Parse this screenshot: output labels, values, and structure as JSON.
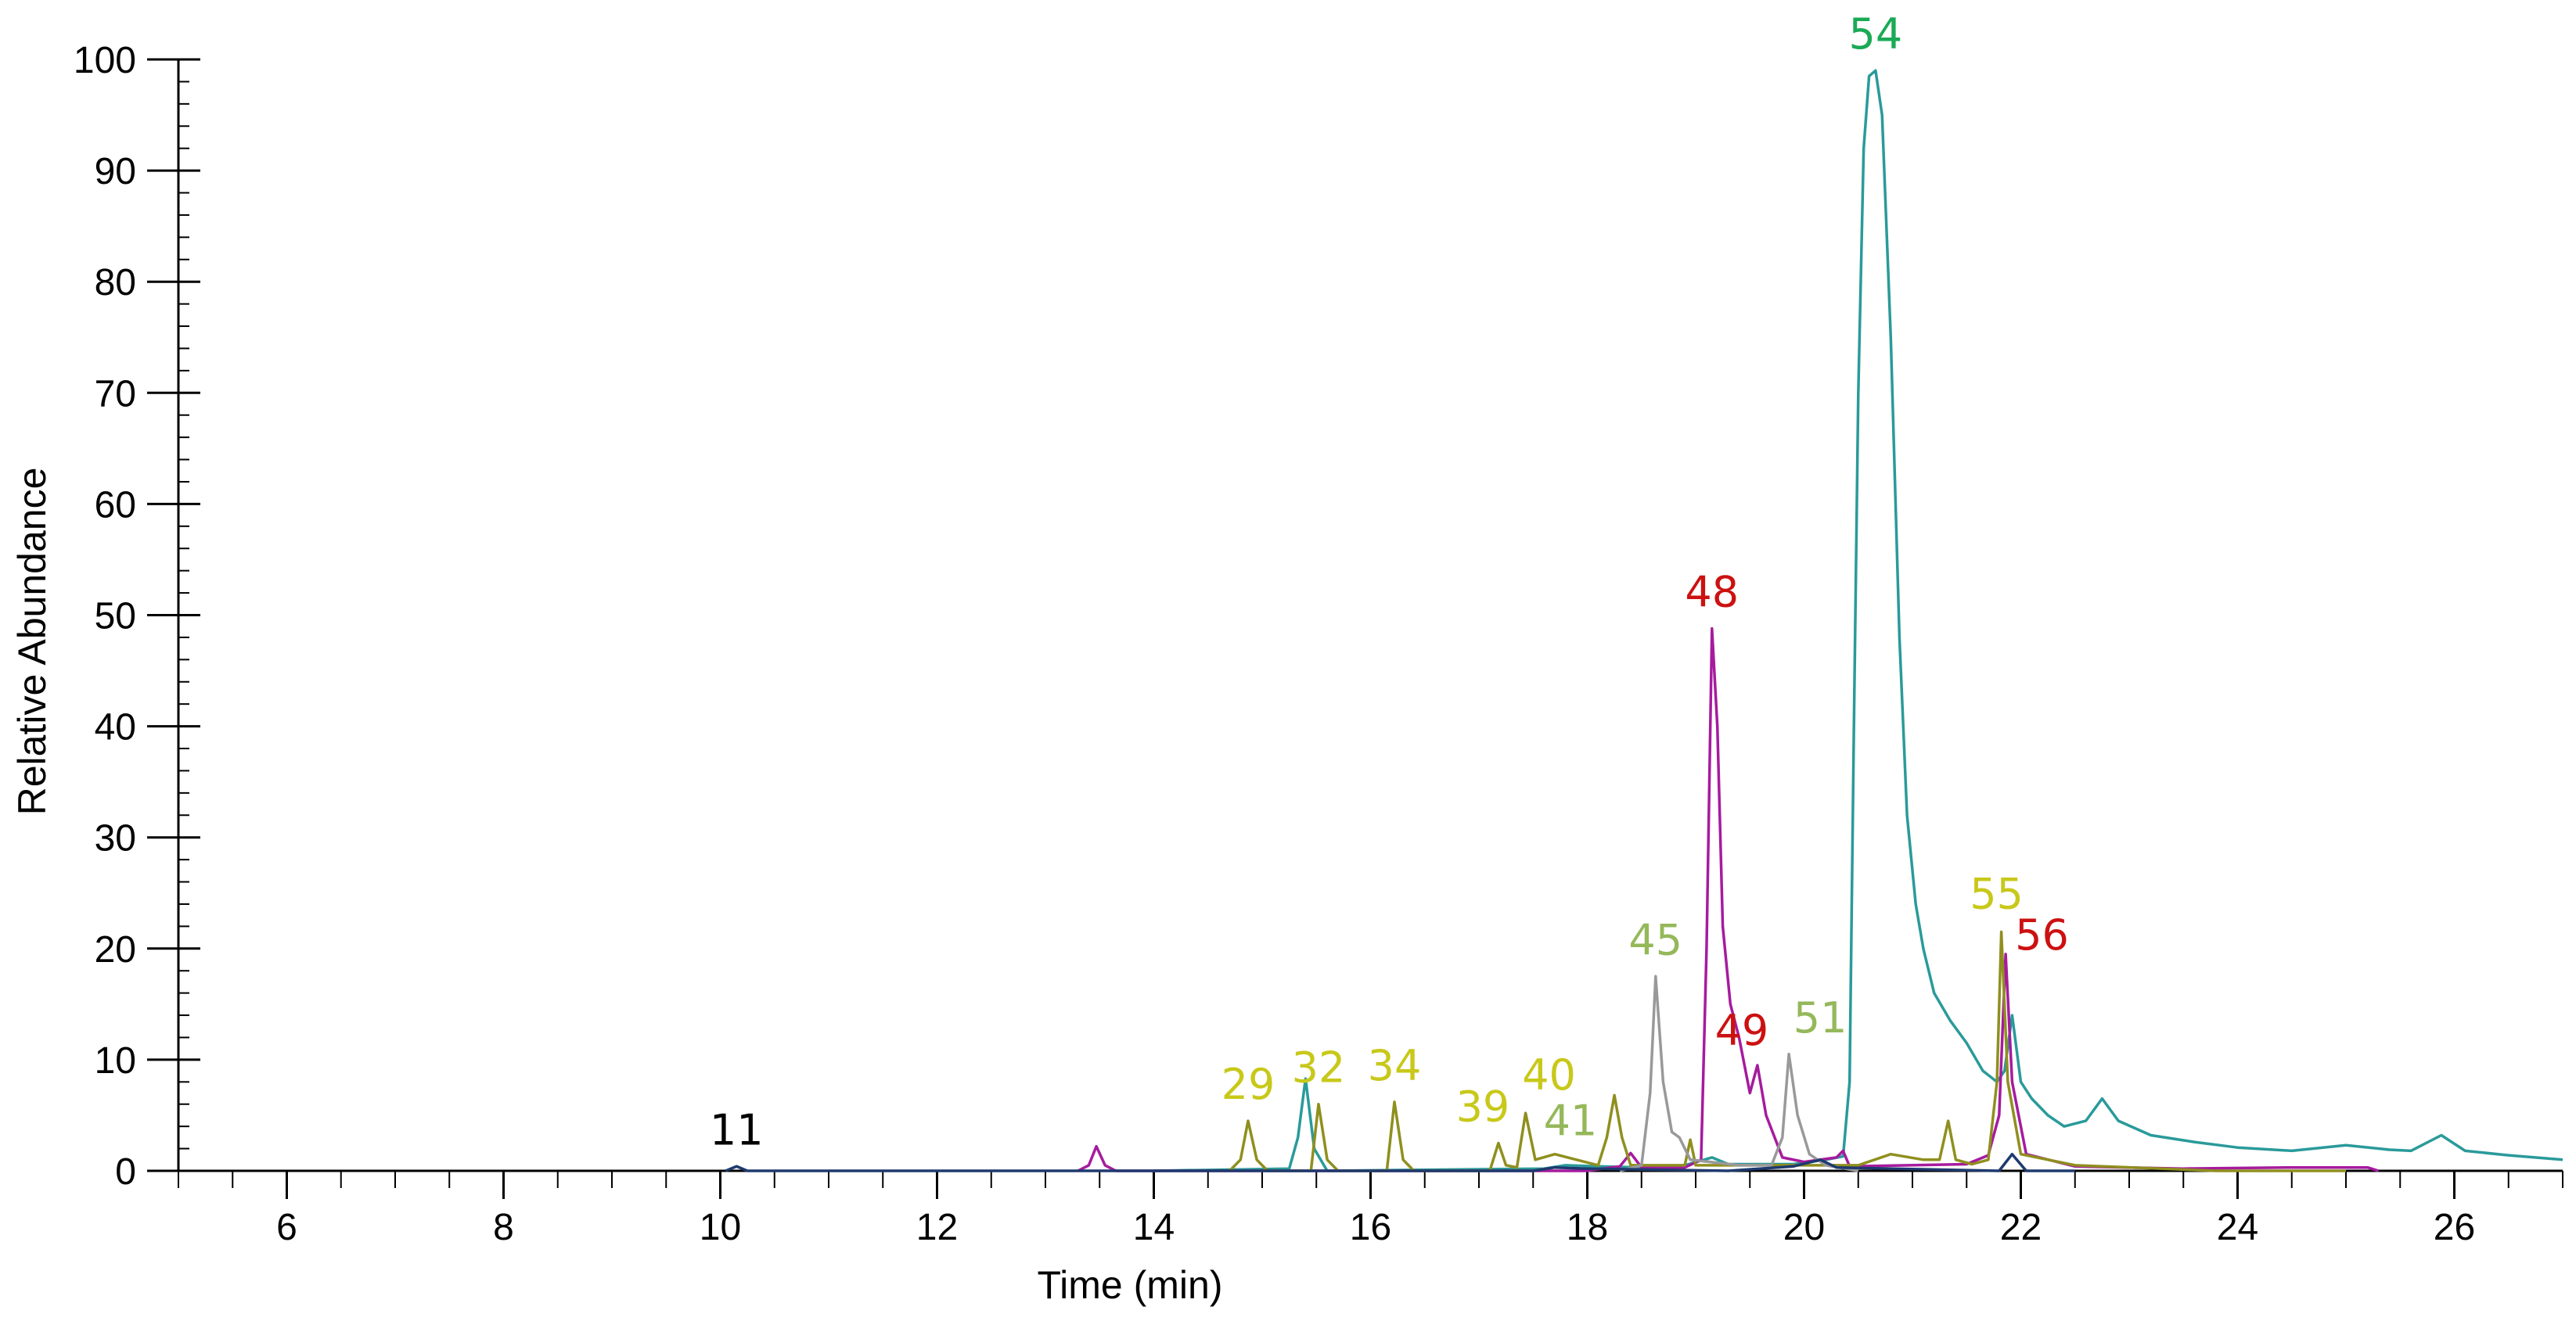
{
  "chart_data": {
    "type": "line",
    "title": "",
    "xlabel": "Time (min)",
    "ylabel": "Relative Abundance",
    "xlim": [
      5,
      27
    ],
    "ylim": [
      0,
      100
    ],
    "x_ticks": [
      6,
      8,
      10,
      12,
      14,
      16,
      18,
      20,
      22,
      24,
      26
    ],
    "x_tick_labels": [
      "6",
      "8",
      "10",
      "12",
      "14",
      "16",
      "18",
      "20",
      "22",
      "24",
      "26"
    ],
    "y_ticks": [
      0,
      10,
      20,
      30,
      40,
      50,
      60,
      70,
      80,
      90,
      100
    ],
    "y_tick_labels": [
      "0",
      "10",
      "20",
      "30",
      "40",
      "50",
      "60",
      "70",
      "80",
      "90",
      "100"
    ],
    "grid": false,
    "legend": "none",
    "series": [
      {
        "color": "#2a9a9a",
        "points": [
          [
            14.0,
            0
          ],
          [
            15.25,
            0.2
          ],
          [
            15.33,
            3
          ],
          [
            15.4,
            8.3
          ],
          [
            15.48,
            2
          ],
          [
            15.6,
            0
          ],
          [
            17.6,
            0.2
          ],
          [
            17.8,
            0.5
          ],
          [
            18.1,
            0.4
          ],
          [
            18.5,
            0.3
          ],
          [
            18.9,
            0.5
          ],
          [
            19.15,
            1.2
          ],
          [
            19.3,
            0.6
          ],
          [
            19.9,
            0.6
          ],
          [
            20.2,
            1.0
          ],
          [
            20.36,
            1.3
          ],
          [
            20.42,
            8
          ],
          [
            20.46,
            40
          ],
          [
            20.5,
            70
          ],
          [
            20.55,
            92
          ],
          [
            20.6,
            98.5
          ],
          [
            20.66,
            99
          ],
          [
            20.72,
            95
          ],
          [
            20.8,
            75
          ],
          [
            20.88,
            48
          ],
          [
            20.95,
            32
          ],
          [
            21.03,
            24
          ],
          [
            21.1,
            20
          ],
          [
            21.2,
            16
          ],
          [
            21.35,
            13.5
          ],
          [
            21.5,
            11.5
          ],
          [
            21.65,
            9
          ],
          [
            21.78,
            8
          ],
          [
            21.85,
            9
          ],
          [
            21.92,
            14
          ],
          [
            22.0,
            8
          ],
          [
            22.1,
            6.5
          ],
          [
            22.25,
            5
          ],
          [
            22.4,
            4
          ],
          [
            22.6,
            4.5
          ],
          [
            22.75,
            6.5
          ],
          [
            22.9,
            4.5
          ],
          [
            23.2,
            3.2
          ],
          [
            23.6,
            2.6
          ],
          [
            24.0,
            2.1
          ],
          [
            24.5,
            1.8
          ],
          [
            25.0,
            2.3
          ],
          [
            25.4,
            1.9
          ],
          [
            25.6,
            1.8
          ],
          [
            25.88,
            3.2
          ],
          [
            26.1,
            1.8
          ],
          [
            26.5,
            1.4
          ],
          [
            27.0,
            1.0
          ]
        ]
      },
      {
        "color": "#a61b9e",
        "points": [
          [
            13.3,
            0
          ],
          [
            13.4,
            0.5
          ],
          [
            13.47,
            2.2
          ],
          [
            13.55,
            0.5
          ],
          [
            13.65,
            0
          ],
          [
            18.0,
            0
          ],
          [
            18.3,
            0.4
          ],
          [
            18.4,
            1.6
          ],
          [
            18.5,
            0.3
          ],
          [
            18.9,
            0.3
          ],
          [
            19.05,
            1
          ],
          [
            19.1,
            20
          ],
          [
            19.15,
            48.8
          ],
          [
            19.2,
            40
          ],
          [
            19.25,
            22
          ],
          [
            19.32,
            15
          ],
          [
            19.4,
            12
          ],
          [
            19.5,
            7
          ],
          [
            19.57,
            9.5
          ],
          [
            19.65,
            5
          ],
          [
            19.8,
            1.2
          ],
          [
            20.0,
            0.8
          ],
          [
            20.3,
            1.2
          ],
          [
            20.36,
            1.8
          ],
          [
            20.42,
            0.4
          ],
          [
            21.5,
            0.6
          ],
          [
            21.7,
            1.4
          ],
          [
            21.8,
            5
          ],
          [
            21.86,
            19.5
          ],
          [
            21.92,
            8
          ],
          [
            22.05,
            1.5
          ],
          [
            22.5,
            0.4
          ],
          [
            23.5,
            0.2
          ],
          [
            24.5,
            0.3
          ],
          [
            25.2,
            0.3
          ],
          [
            25.3,
            0
          ]
        ]
      },
      {
        "color": "#8f8f1f",
        "points": [
          [
            14.7,
            0
          ],
          [
            14.8,
            1
          ],
          [
            14.87,
            4.5
          ],
          [
            14.95,
            1
          ],
          [
            15.05,
            0
          ],
          [
            15.45,
            0
          ],
          [
            15.52,
            6
          ],
          [
            15.6,
            1
          ],
          [
            15.7,
            0
          ],
          [
            16.15,
            0
          ],
          [
            16.22,
            6.2
          ],
          [
            16.3,
            1
          ],
          [
            16.4,
            0
          ],
          [
            17.1,
            0
          ],
          [
            17.18,
            2.5
          ],
          [
            17.25,
            0.5
          ],
          [
            17.35,
            0.3
          ],
          [
            17.43,
            5.2
          ],
          [
            17.52,
            1
          ],
          [
            17.7,
            1.5
          ],
          [
            17.9,
            1
          ],
          [
            18.1,
            0.5
          ],
          [
            18.18,
            3
          ],
          [
            18.25,
            6.8
          ],
          [
            18.32,
            3
          ],
          [
            18.4,
            0.5
          ],
          [
            18.9,
            0.5
          ],
          [
            18.95,
            2.8
          ],
          [
            19.0,
            0.5
          ],
          [
            20.5,
            0.5
          ],
          [
            20.8,
            1.5
          ],
          [
            21.1,
            1
          ],
          [
            21.25,
            1
          ],
          [
            21.33,
            4.5
          ],
          [
            21.4,
            1
          ],
          [
            21.55,
            0.6
          ],
          [
            21.7,
            1
          ],
          [
            21.78,
            8
          ],
          [
            21.82,
            21.5
          ],
          [
            21.88,
            8
          ],
          [
            22.0,
            1.5
          ],
          [
            22.5,
            0.5
          ],
          [
            23.8,
            0
          ],
          [
            25.0,
            0
          ]
        ]
      },
      {
        "color": "#999999",
        "points": [
          [
            18.3,
            0
          ],
          [
            18.5,
            0.5
          ],
          [
            18.58,
            7
          ],
          [
            18.63,
            17.5
          ],
          [
            18.7,
            8
          ],
          [
            18.78,
            3.5
          ],
          [
            18.85,
            3
          ],
          [
            18.95,
            1
          ],
          [
            19.4,
            0.5
          ],
          [
            19.7,
            0.5
          ],
          [
            19.8,
            3
          ],
          [
            19.86,
            10.5
          ],
          [
            19.94,
            5
          ],
          [
            20.05,
            1.5
          ],
          [
            20.2,
            0.5
          ],
          [
            20.5,
            0
          ]
        ]
      },
      {
        "color": "#1e3a6e",
        "points": [
          [
            10.05,
            0
          ],
          [
            10.15,
            0.4
          ],
          [
            10.25,
            0
          ],
          [
            17.5,
            0
          ],
          [
            17.7,
            0.3
          ],
          [
            18.0,
            0.2
          ],
          [
            19.3,
            0
          ],
          [
            19.9,
            0.4
          ],
          [
            20.15,
            1
          ],
          [
            20.3,
            0.3
          ],
          [
            21.8,
            0
          ],
          [
            21.92,
            1.5
          ],
          [
            22.05,
            0
          ],
          [
            22.5,
            0
          ]
        ]
      }
    ],
    "annotations": [
      {
        "text": "11",
        "x": 10.15,
        "y": 0.4,
        "color": "#000000"
      },
      {
        "text": "29",
        "x": 14.87,
        "y": 4.5,
        "color": "#c8c81a"
      },
      {
        "text": "32",
        "x": 15.52,
        "y": 6.0,
        "color": "#c8c81a"
      },
      {
        "text": "34",
        "x": 16.22,
        "y": 6.2,
        "color": "#c8c81a"
      },
      {
        "text": "39",
        "x": 17.18,
        "y": 2.5,
        "color": "#c8c81a"
      },
      {
        "text": "40",
        "x": 17.43,
        "y": 5.2,
        "color": "#c8c81a"
      },
      {
        "text": "41",
        "x": 17.7,
        "y": 1.5,
        "color": "#95b85a"
      },
      {
        "text": "45",
        "x": 18.63,
        "y": 17.5,
        "color": "#95b85a"
      },
      {
        "text": "48",
        "x": 19.15,
        "y": 48.8,
        "color": "#cc1111"
      },
      {
        "text": "49",
        "x": 19.57,
        "y": 9.5,
        "color": "#cc1111"
      },
      {
        "text": "51",
        "x": 19.86,
        "y": 10.5,
        "color": "#95b85a"
      },
      {
        "text": "54",
        "x": 20.66,
        "y": 99.0,
        "color": "#1aaa55"
      },
      {
        "text": "55",
        "x": 21.82,
        "y": 21.5,
        "color": "#c8c81a"
      },
      {
        "text": "56",
        "x": 21.86,
        "y": 19.5,
        "color": "#cc1111"
      }
    ]
  }
}
